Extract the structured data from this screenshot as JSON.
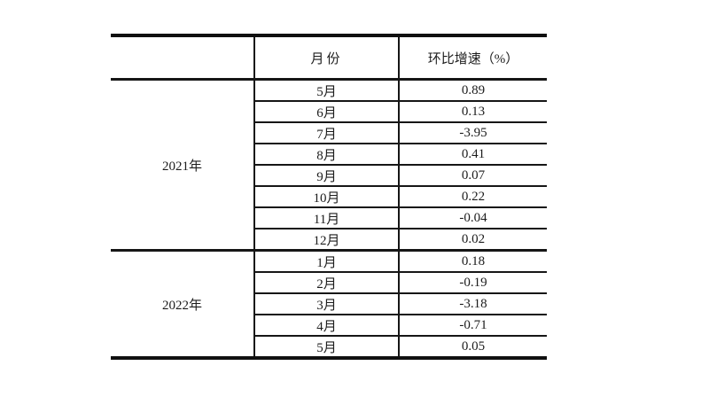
{
  "page": {
    "background": "#ffffff",
    "line_color": "#161616",
    "text_color": "#1c1c1c"
  },
  "table": {
    "headers": {
      "year": "",
      "month": "月份",
      "growth": "环比增速（%）"
    },
    "groups": [
      {
        "year": "2021年",
        "rows": [
          {
            "month": "5月",
            "value": "0.89"
          },
          {
            "month": "6月",
            "value": "0.13"
          },
          {
            "month": "7月",
            "value": "-3.95"
          },
          {
            "month": "8月",
            "value": "0.41"
          },
          {
            "month": "9月",
            "value": "0.07"
          },
          {
            "month": "10月",
            "value": "0.22"
          },
          {
            "month": "11月",
            "value": "-0.04"
          },
          {
            "month": "12月",
            "value": "0.02"
          }
        ]
      },
      {
        "year": "2022年",
        "rows": [
          {
            "month": "1月",
            "value": "0.18"
          },
          {
            "month": "2月",
            "value": "-0.19"
          },
          {
            "month": "3月",
            "value": "-3.18"
          },
          {
            "month": "4月",
            "value": "-0.71"
          },
          {
            "month": "5月",
            "value": "0.05"
          }
        ]
      }
    ]
  },
  "chart_data": {
    "type": "table",
    "columns": [
      "",
      "月份",
      "环比增速（%）"
    ],
    "rows": [
      [
        "2021年",
        "5月",
        0.89
      ],
      [
        "2021年",
        "6月",
        0.13
      ],
      [
        "2021年",
        "7月",
        -3.95
      ],
      [
        "2021年",
        "8月",
        0.41
      ],
      [
        "2021年",
        "9月",
        0.07
      ],
      [
        "2021年",
        "10月",
        0.22
      ],
      [
        "2021年",
        "11月",
        -0.04
      ],
      [
        "2021年",
        "12月",
        0.02
      ],
      [
        "2022年",
        "1月",
        0.18
      ],
      [
        "2022年",
        "2月",
        -0.19
      ],
      [
        "2022年",
        "3月",
        -3.18
      ],
      [
        "2022年",
        "4月",
        -0.71
      ],
      [
        "2022年",
        "5月",
        0.05
      ]
    ]
  }
}
